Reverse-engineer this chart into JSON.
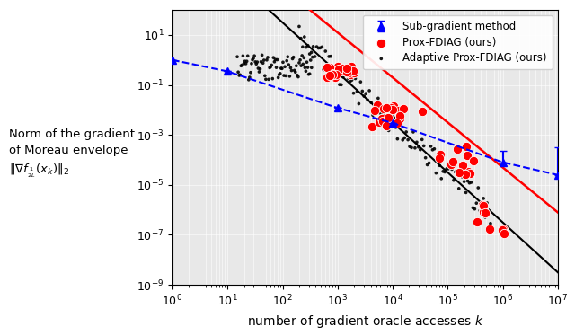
{
  "xlabel": "number of gradient oracle accesses $k$",
  "ylabel_text": "Norm of the gradient\nof Moreau envelope\n$\\|\\nabla f_{\\frac{1}{2L}}(x_k)\\|_2$",
  "xlim": [
    1,
    10000000.0
  ],
  "ylim": [
    1e-09,
    100.0
  ],
  "sg_x": [
    1,
    10,
    1000,
    10000,
    1000000,
    10000000
  ],
  "sg_y": [
    1.0,
    0.35,
    0.012,
    0.003,
    8e-05,
    2.5e-05
  ],
  "sg_yerr_lo": [
    0,
    0,
    0,
    0,
    0,
    0
  ],
  "sg_yerr_hi": [
    0,
    0,
    0,
    0,
    0.00015,
    0.0003
  ],
  "black_line_start_x": 20,
  "black_line_end_x": 10000000.0,
  "black_line_a": 5.5,
  "black_line_slope": -2.0,
  "red_line_start_x": 300,
  "red_line_end_x": 10000000.0,
  "red_line_a": 6.5,
  "red_line_slope": -1.8,
  "background_color": "#e8e8e8",
  "grid_color": "white"
}
